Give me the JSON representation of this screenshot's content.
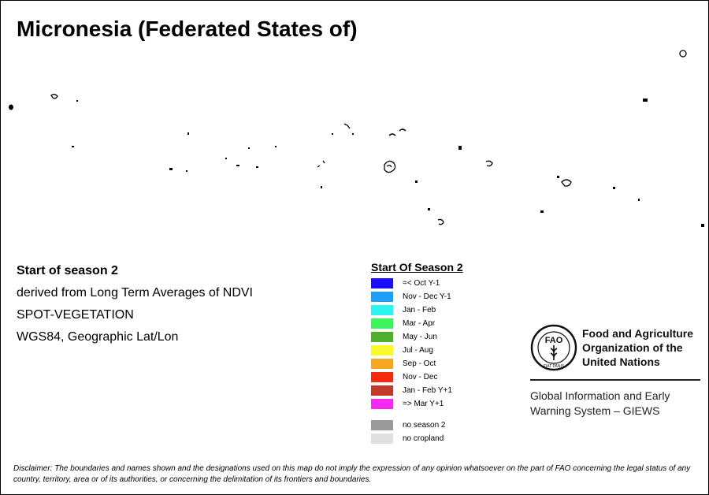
{
  "title": "Micronesia (Federated States of)",
  "info": {
    "line1": "Start of season 2",
    "line2": "derived from Long Term Averages of NDVI",
    "line3": "SPOT-VEGETATION",
    "line4": "WGS84, Geographic Lat/Lon"
  },
  "legend": {
    "title": "Start Of Season 2",
    "items": [
      {
        "label": "=< Oct Y-1",
        "color": "#1a0dff"
      },
      {
        "label": "Nov - Dec Y-1",
        "color": "#1e9ff5"
      },
      {
        "label": "Jan - Feb",
        "color": "#2cf5f0"
      },
      {
        "label": "Mar - Apr",
        "color": "#3cf55a"
      },
      {
        "label": "May - Jun",
        "color": "#4cb02e"
      },
      {
        "label": "Jul - Aug",
        "color": "#fafa2a"
      },
      {
        "label": "Sep - Oct",
        "color": "#f5a623"
      },
      {
        "label": "Nov - Dec",
        "color": "#f52a0f"
      },
      {
        "label": "Jan - Feb Y+1",
        "color": "#c0392b"
      },
      {
        "label": "=> Mar Y+1",
        "color": "#f52af0"
      }
    ],
    "extra": [
      {
        "label": "no season 2",
        "color": "#999999"
      },
      {
        "label": "no cropland",
        "color": "#e0e0e0"
      }
    ]
  },
  "fao": {
    "name1": "Food and Agriculture",
    "name2": "Organization of the",
    "name3": "United Nations",
    "giews1": "Global Information and Early",
    "giews2": "Warning System – GIEWS",
    "logo_letters": "FAO",
    "logo_motto": "FIAT PANIS"
  },
  "disclaimer": "Disclaimer: The boundaries and names shown and the designations used on this map do not imply the expression of any opinion whatsoever on the part of FAO concerning the legal status of any country, territory, area or of its authorities, or concerning the delimitation of its frontiers and boundaries."
}
